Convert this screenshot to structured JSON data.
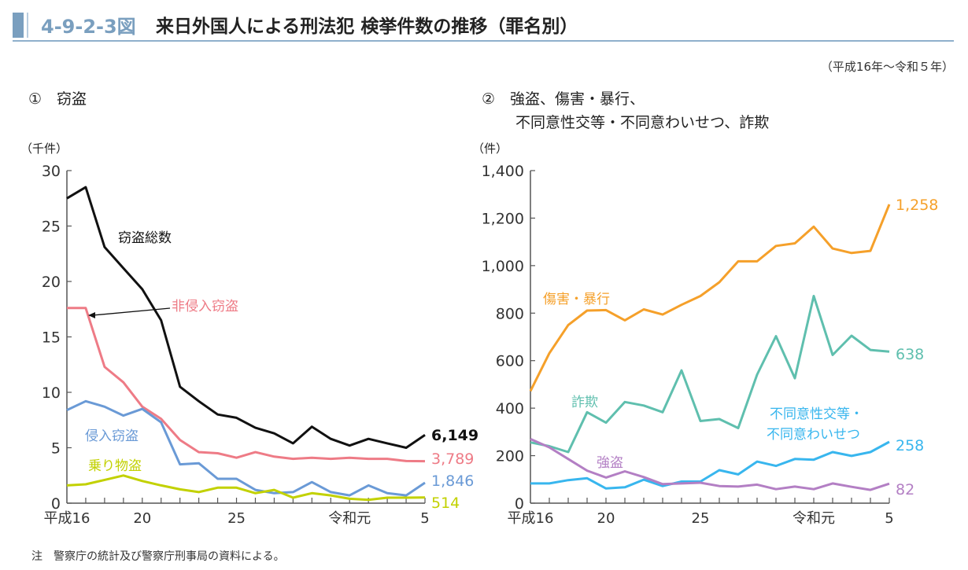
{
  "header": {
    "figure_number": "4-9-2-3図",
    "title": "来日外国人による刑法犯 検挙件数の推移（罪名別）",
    "period": "（平成16年～令和５年）"
  },
  "note": "注　警察庁の統計及び警察庁刑事局の資料による。",
  "colors": {
    "accent": "#7a9fbf",
    "black": "#111111",
    "pink": "#ee7b86",
    "blue": "#6a9ad6",
    "yellow": "#c2d100",
    "orange": "#f5a02a",
    "teal": "#5fbfae",
    "sky": "#38b6ee",
    "purple": "#b37fc4"
  },
  "chart_data": [
    {
      "type": "line",
      "title": "①　窃盗",
      "ylabel": "（千件）",
      "ylim": [
        0,
        30
      ],
      "yticks": [
        "0",
        "5",
        "10",
        "15",
        "20",
        "25",
        "30"
      ],
      "x": [
        2004,
        2005,
        2006,
        2007,
        2008,
        2009,
        2010,
        2011,
        2012,
        2013,
        2014,
        2015,
        2016,
        2017,
        2018,
        2019,
        2020,
        2021,
        2022,
        2023
      ],
      "xtick_labels": [
        {
          "year": 2004,
          "label": "平成16"
        },
        {
          "year": 2008,
          "label": "20"
        },
        {
          "year": 2013,
          "label": "25"
        },
        {
          "year": 2019,
          "label": "令和元"
        },
        {
          "year": 2023,
          "label": "5"
        }
      ],
      "series": [
        {
          "name": "窃盗総数",
          "color": "#111111",
          "end_label": "6,149",
          "values": [
            27.5,
            28.5,
            23.1,
            21.2,
            19.3,
            16.5,
            10.5,
            9.2,
            8.0,
            7.7,
            6.8,
            6.3,
            5.4,
            6.9,
            5.8,
            5.2,
            5.8,
            5.4,
            5.0,
            6.149
          ]
        },
        {
          "name": "非侵入窃盗",
          "color": "#ee7b86",
          "end_label": "3,789",
          "values": [
            17.6,
            17.6,
            12.3,
            10.9,
            8.7,
            7.6,
            5.7,
            4.6,
            4.5,
            4.1,
            4.6,
            4.2,
            4.0,
            4.1,
            4.0,
            4.1,
            4.0,
            4.0,
            3.8,
            3.789
          ]
        },
        {
          "name": "侵入窃盗",
          "color": "#6a9ad6",
          "end_label": "1,846",
          "values": [
            8.4,
            9.2,
            8.7,
            7.9,
            8.5,
            7.3,
            3.5,
            3.6,
            2.2,
            2.2,
            1.2,
            0.9,
            1.0,
            1.9,
            1.0,
            0.7,
            1.6,
            0.9,
            0.7,
            1.846
          ]
        },
        {
          "name": "乗り物盗",
          "color": "#c2d100",
          "end_label": "514",
          "values": [
            1.6,
            1.7,
            2.1,
            2.5,
            2.0,
            1.6,
            1.25,
            1.0,
            1.4,
            1.4,
            0.9,
            1.2,
            0.5,
            0.9,
            0.7,
            0.4,
            0.3,
            0.5,
            0.5,
            0.514
          ]
        }
      ]
    },
    {
      "type": "line",
      "title_lines": [
        "②　強盗、傷害・暴行、",
        "不同意性交等・不同意わいせつ、詐欺"
      ],
      "ylabel": "（件）",
      "ylim": [
        0,
        1400
      ],
      "yticks": [
        "0",
        "200",
        "400",
        "600",
        "800",
        "1,000",
        "1,200",
        "1,400"
      ],
      "x": [
        2004,
        2005,
        2006,
        2007,
        2008,
        2009,
        2010,
        2011,
        2012,
        2013,
        2014,
        2015,
        2016,
        2017,
        2018,
        2019,
        2020,
        2021,
        2022,
        2023
      ],
      "xtick_labels": [
        {
          "year": 2004,
          "label": "平成16"
        },
        {
          "year": 2008,
          "label": "20"
        },
        {
          "year": 2013,
          "label": "25"
        },
        {
          "year": 2019,
          "label": "令和元"
        },
        {
          "year": 2023,
          "label": "5"
        }
      ],
      "series": [
        {
          "name": "傷害・暴行",
          "color": "#f5a02a",
          "end_label": "1,258",
          "values": [
            472,
            631,
            750,
            811,
            813,
            770,
            816,
            794,
            835,
            872,
            930,
            1018,
            1018,
            1083,
            1094,
            1164,
            1072,
            1053,
            1062,
            1258
          ]
        },
        {
          "name": "詐欺",
          "color": "#5fbfae",
          "end_label": "638",
          "values": [
            256,
            240,
            215,
            383,
            339,
            426,
            411,
            383,
            559,
            346,
            354,
            316,
            541,
            703,
            526,
            872,
            624,
            705,
            645,
            638
          ]
        },
        {
          "name": "不同意性交等・不同意わいせつ",
          "label_lines": [
            "不同意性交等・",
            "不同意わいせつ"
          ],
          "color": "#38b6ee",
          "end_label": "258",
          "values": [
            83,
            83,
            97,
            105,
            62,
            67,
            99,
            72,
            91,
            91,
            139,
            121,
            175,
            157,
            186,
            183,
            215,
            199,
            215,
            258
          ]
        },
        {
          "name": "強盗",
          "color": "#b37fc4",
          "end_label": "82",
          "values": [
            270,
            235,
            186,
            137,
            108,
            134,
            110,
            80,
            83,
            86,
            72,
            70,
            78,
            59,
            70,
            59,
            83,
            69,
            56,
            82
          ]
        }
      ]
    }
  ]
}
